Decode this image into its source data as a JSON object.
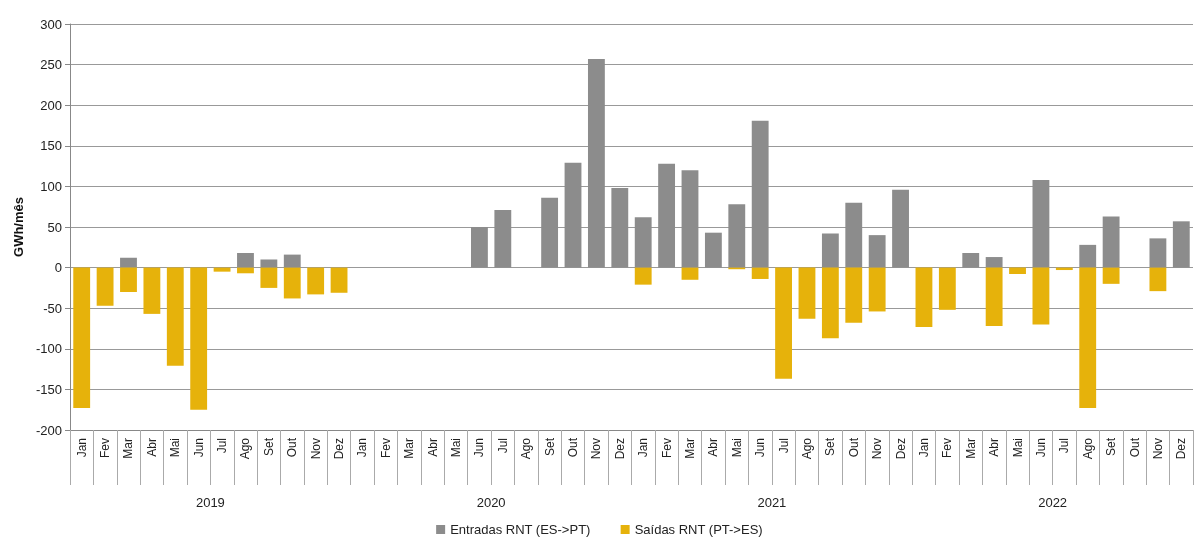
{
  "chart_data": {
    "type": "bar",
    "ylabel": "GWh/mês",
    "stacked": true,
    "grid": "y",
    "legend": "bottom",
    "categories": [
      "Jan",
      "Fev",
      "Mar",
      "Abr",
      "Mai",
      "Jun",
      "Jul",
      "Ago",
      "Set",
      "Out",
      "Nov",
      "Dez",
      "Jan",
      "Fev",
      "Mar",
      "Abr",
      "Mai",
      "Jun",
      "Jul",
      "Ago",
      "Set",
      "Out",
      "Nov",
      "Dez",
      "Jan",
      "Fev",
      "Mar",
      "Abr",
      "Mai",
      "Jun",
      "Jul",
      "Ago",
      "Set",
      "Out",
      "Nov",
      "Dez",
      "Jan",
      "Fev",
      "Mar",
      "Abr",
      "Mai",
      "Jun",
      "Jul",
      "Ago",
      "Set",
      "Out",
      "Nov",
      "Dez"
    ],
    "annotations": [
      "2019",
      "2020",
      "2021",
      "2022"
    ],
    "ylim": [
      -200,
      300
    ],
    "yticks": [
      -200,
      -150,
      -100,
      -50,
      0,
      50,
      100,
      150,
      200,
      250,
      300
    ],
    "series": [
      {
        "name": "Entradas RNT (ES->PT)",
        "color": "#8c8c8c",
        "values": [
          null,
          null,
          12,
          null,
          null,
          null,
          null,
          18,
          10,
          16,
          null,
          null,
          null,
          null,
          null,
          null,
          null,
          50,
          71,
          null,
          86,
          129,
          257,
          98,
          62,
          128,
          120,
          43,
          78,
          181,
          null,
          null,
          42,
          80,
          40,
          96,
          null,
          null,
          18,
          13,
          null,
          108,
          null,
          28,
          63,
          null,
          36,
          57
        ]
      },
      {
        "name": "Saídas RNT (PT->ES)",
        "color": "#e6b20b",
        "values": [
          -173,
          -47,
          -30,
          -57,
          -121,
          -175,
          -5,
          -7,
          -25,
          -38,
          -33,
          -31,
          null,
          null,
          null,
          null,
          null,
          null,
          null,
          null,
          null,
          null,
          null,
          null,
          -21,
          null,
          -15,
          null,
          -2,
          -14,
          -137,
          -63,
          -87,
          -68,
          -54,
          null,
          -73,
          -52,
          null,
          -72,
          -8,
          -70,
          -3,
          -173,
          -20,
          null,
          -29,
          null
        ]
      }
    ]
  }
}
